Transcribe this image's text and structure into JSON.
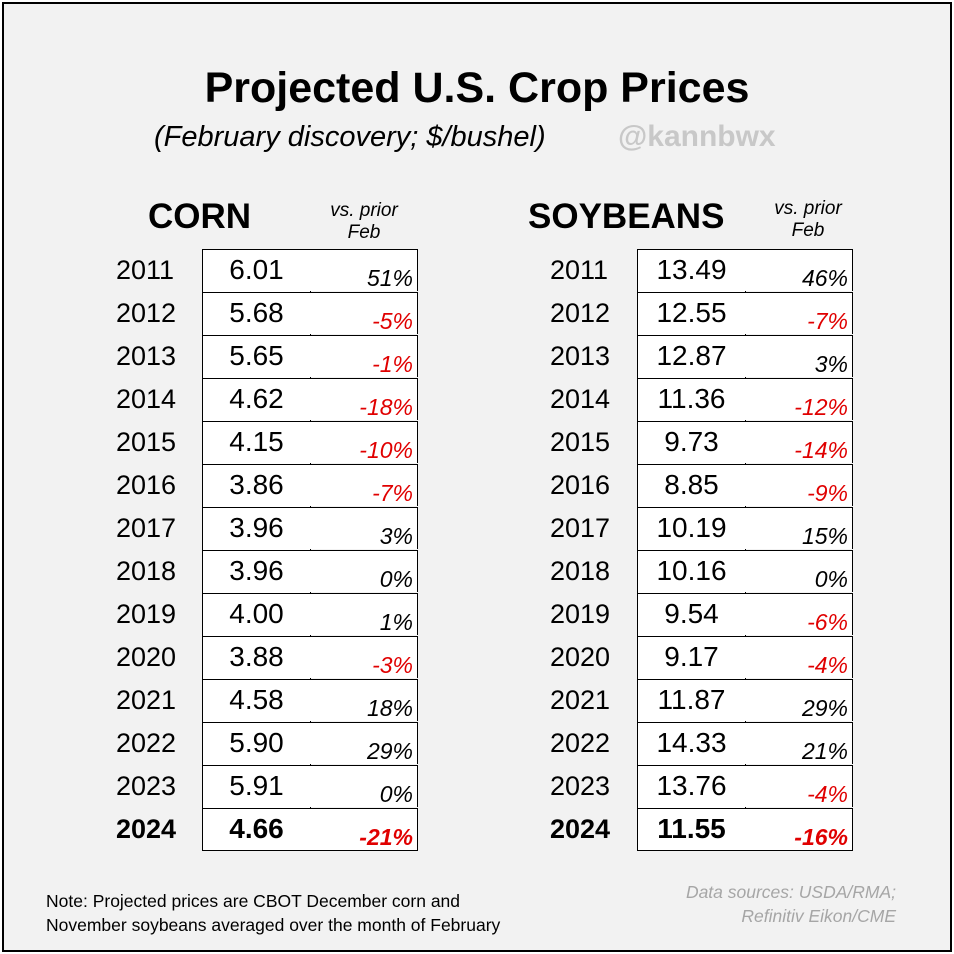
{
  "chart_data": {
    "type": "table",
    "title": "Projected U.S. Crop Prices",
    "subtitle": "(February discovery; $/bushel)",
    "handle": "@kannbwx",
    "change_header_line1": "vs. prior",
    "change_header_line2": "Feb",
    "note_line1": "Note: Projected prices are CBOT December corn and",
    "note_line2": "November soybeans averaged over the month of February",
    "sources_line1": "Data sources: USDA/RMA;",
    "sources_line2": "Refinitiv Eikon/CME",
    "negative_color": "#e00000",
    "years": [
      "2011",
      "2012",
      "2013",
      "2014",
      "2015",
      "2016",
      "2017",
      "2018",
      "2019",
      "2020",
      "2021",
      "2022",
      "2023",
      "2024"
    ],
    "highlight_year": "2024",
    "series": [
      {
        "name": "CORN",
        "prices": [
          "6.01",
          "5.68",
          "5.65",
          "4.62",
          "4.15",
          "3.86",
          "3.96",
          "3.96",
          "4.00",
          "3.88",
          "4.58",
          "5.90",
          "5.91",
          "4.66"
        ],
        "changes": [
          "51%",
          "-5%",
          "-1%",
          "-18%",
          "-10%",
          "-7%",
          "3%",
          "0%",
          "1%",
          "-3%",
          "18%",
          "29%",
          "0%",
          "-21%"
        ]
      },
      {
        "name": "SOYBEANS",
        "prices": [
          "13.49",
          "12.55",
          "12.87",
          "11.36",
          "9.73",
          "8.85",
          "10.19",
          "10.16",
          "9.54",
          "9.17",
          "11.87",
          "14.33",
          "13.76",
          "11.55"
        ],
        "changes": [
          "46%",
          "-7%",
          "3%",
          "-12%",
          "-14%",
          "-9%",
          "15%",
          "0%",
          "-6%",
          "-4%",
          "29%",
          "21%",
          "-4%",
          "-16%"
        ]
      }
    ]
  }
}
